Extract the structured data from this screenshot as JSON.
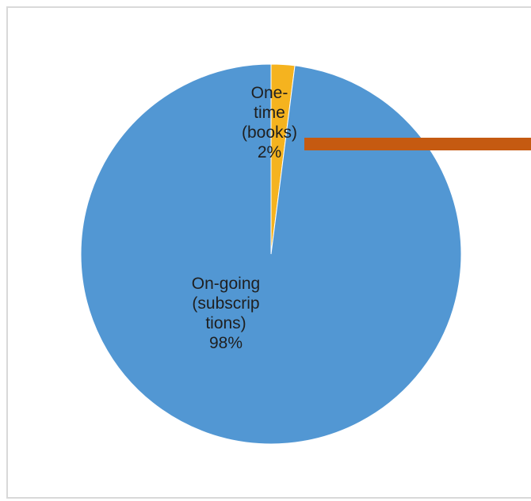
{
  "chart_data": {
    "type": "pie",
    "slices": [
      {
        "name": "One-time (books)",
        "value": 2,
        "label_lines": [
          "One-",
          "time",
          "(books)",
          "2%"
        ],
        "color": "#f5b31f"
      },
      {
        "name": "On-going (subscriptions)",
        "value": 98,
        "label_lines": [
          "On-going",
          "(subscrip",
          "tions)",
          "98%"
        ],
        "color": "#5297d3"
      }
    ],
    "annotation_arrow_color": "#c55a11",
    "legend": "none"
  }
}
